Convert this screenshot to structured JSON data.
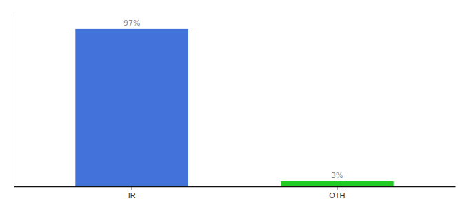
{
  "chart_data": {
    "type": "bar",
    "categories": [
      "IR",
      "OTH"
    ],
    "values": [
      97,
      3
    ],
    "value_labels": [
      "97%",
      "3%"
    ],
    "colors": [
      "#4472db",
      "#22cc22"
    ],
    "ylim": [
      0,
      108
    ],
    "data_labels": true,
    "tick_labels": "x",
    "grid": false
  }
}
